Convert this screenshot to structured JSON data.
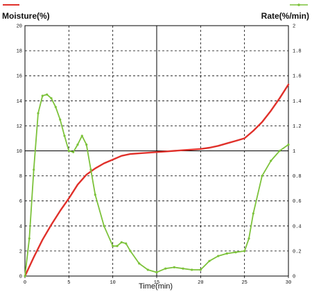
{
  "chart_data": {
    "type": "line",
    "title": "",
    "xlabel": "Time(min)",
    "ylabel_left": "Moisture(%)",
    "ylabel_right": "Rate(%/min)",
    "x_ticks": [
      "0",
      "5",
      "10",
      "15",
      "20",
      "25",
      "30"
    ],
    "y_left_ticks": [
      "0",
      "2",
      "4",
      "6",
      "8",
      "10",
      "12",
      "14",
      "16",
      "18",
      "20"
    ],
    "y_right_ticks": [
      "0",
      "0.2",
      "0.4",
      "0.6",
      "0.8",
      "1",
      "1.2",
      "1.4",
      "1.6",
      "1.8",
      "2"
    ],
    "xlim": [
      0,
      30
    ],
    "ylim_left": [
      0,
      20
    ],
    "ylim_right": [
      0,
      2
    ],
    "grid": true,
    "series": [
      {
        "axis": "left",
        "color": "#e0302a",
        "x": [
          0,
          1,
          2,
          3,
          4,
          5,
          6,
          7,
          8,
          9,
          10,
          11,
          12,
          13,
          14,
          15,
          16,
          17,
          18,
          19,
          20,
          21,
          22,
          23,
          24,
          25,
          26,
          27,
          28,
          29,
          30
        ],
        "y": [
          0,
          1.5,
          2.9,
          4.1,
          5.2,
          6.2,
          7.3,
          8.1,
          8.6,
          9.0,
          9.3,
          9.6,
          9.75,
          9.8,
          9.85,
          9.9,
          9.95,
          10.0,
          10.05,
          10.1,
          10.15,
          10.25,
          10.4,
          10.6,
          10.8,
          11.0,
          11.6,
          12.3,
          13.2,
          14.2,
          15.3
        ]
      },
      {
        "axis": "right",
        "color": "#7cc23a",
        "x": [
          0,
          0.5,
          1,
          1.5,
          2,
          2.5,
          3,
          3.5,
          4,
          4.5,
          5,
          5.5,
          6,
          6.5,
          7,
          7.5,
          8,
          9,
          10,
          10.5,
          11,
          11.5,
          12,
          13,
          14,
          15,
          16,
          17,
          18,
          19,
          20,
          21,
          22,
          23,
          24,
          25,
          25.5,
          26,
          27,
          28,
          29,
          30
        ],
        "y": [
          0,
          0.3,
          0.85,
          1.3,
          1.44,
          1.45,
          1.42,
          1.35,
          1.25,
          1.12,
          1.0,
          0.99,
          1.05,
          1.12,
          1.05,
          0.85,
          0.65,
          0.4,
          0.24,
          0.24,
          0.27,
          0.26,
          0.2,
          0.1,
          0.05,
          0.03,
          0.06,
          0.07,
          0.06,
          0.05,
          0.05,
          0.12,
          0.16,
          0.18,
          0.19,
          0.2,
          0.3,
          0.5,
          0.8,
          0.92,
          1.0,
          1.05
        ]
      }
    ]
  }
}
